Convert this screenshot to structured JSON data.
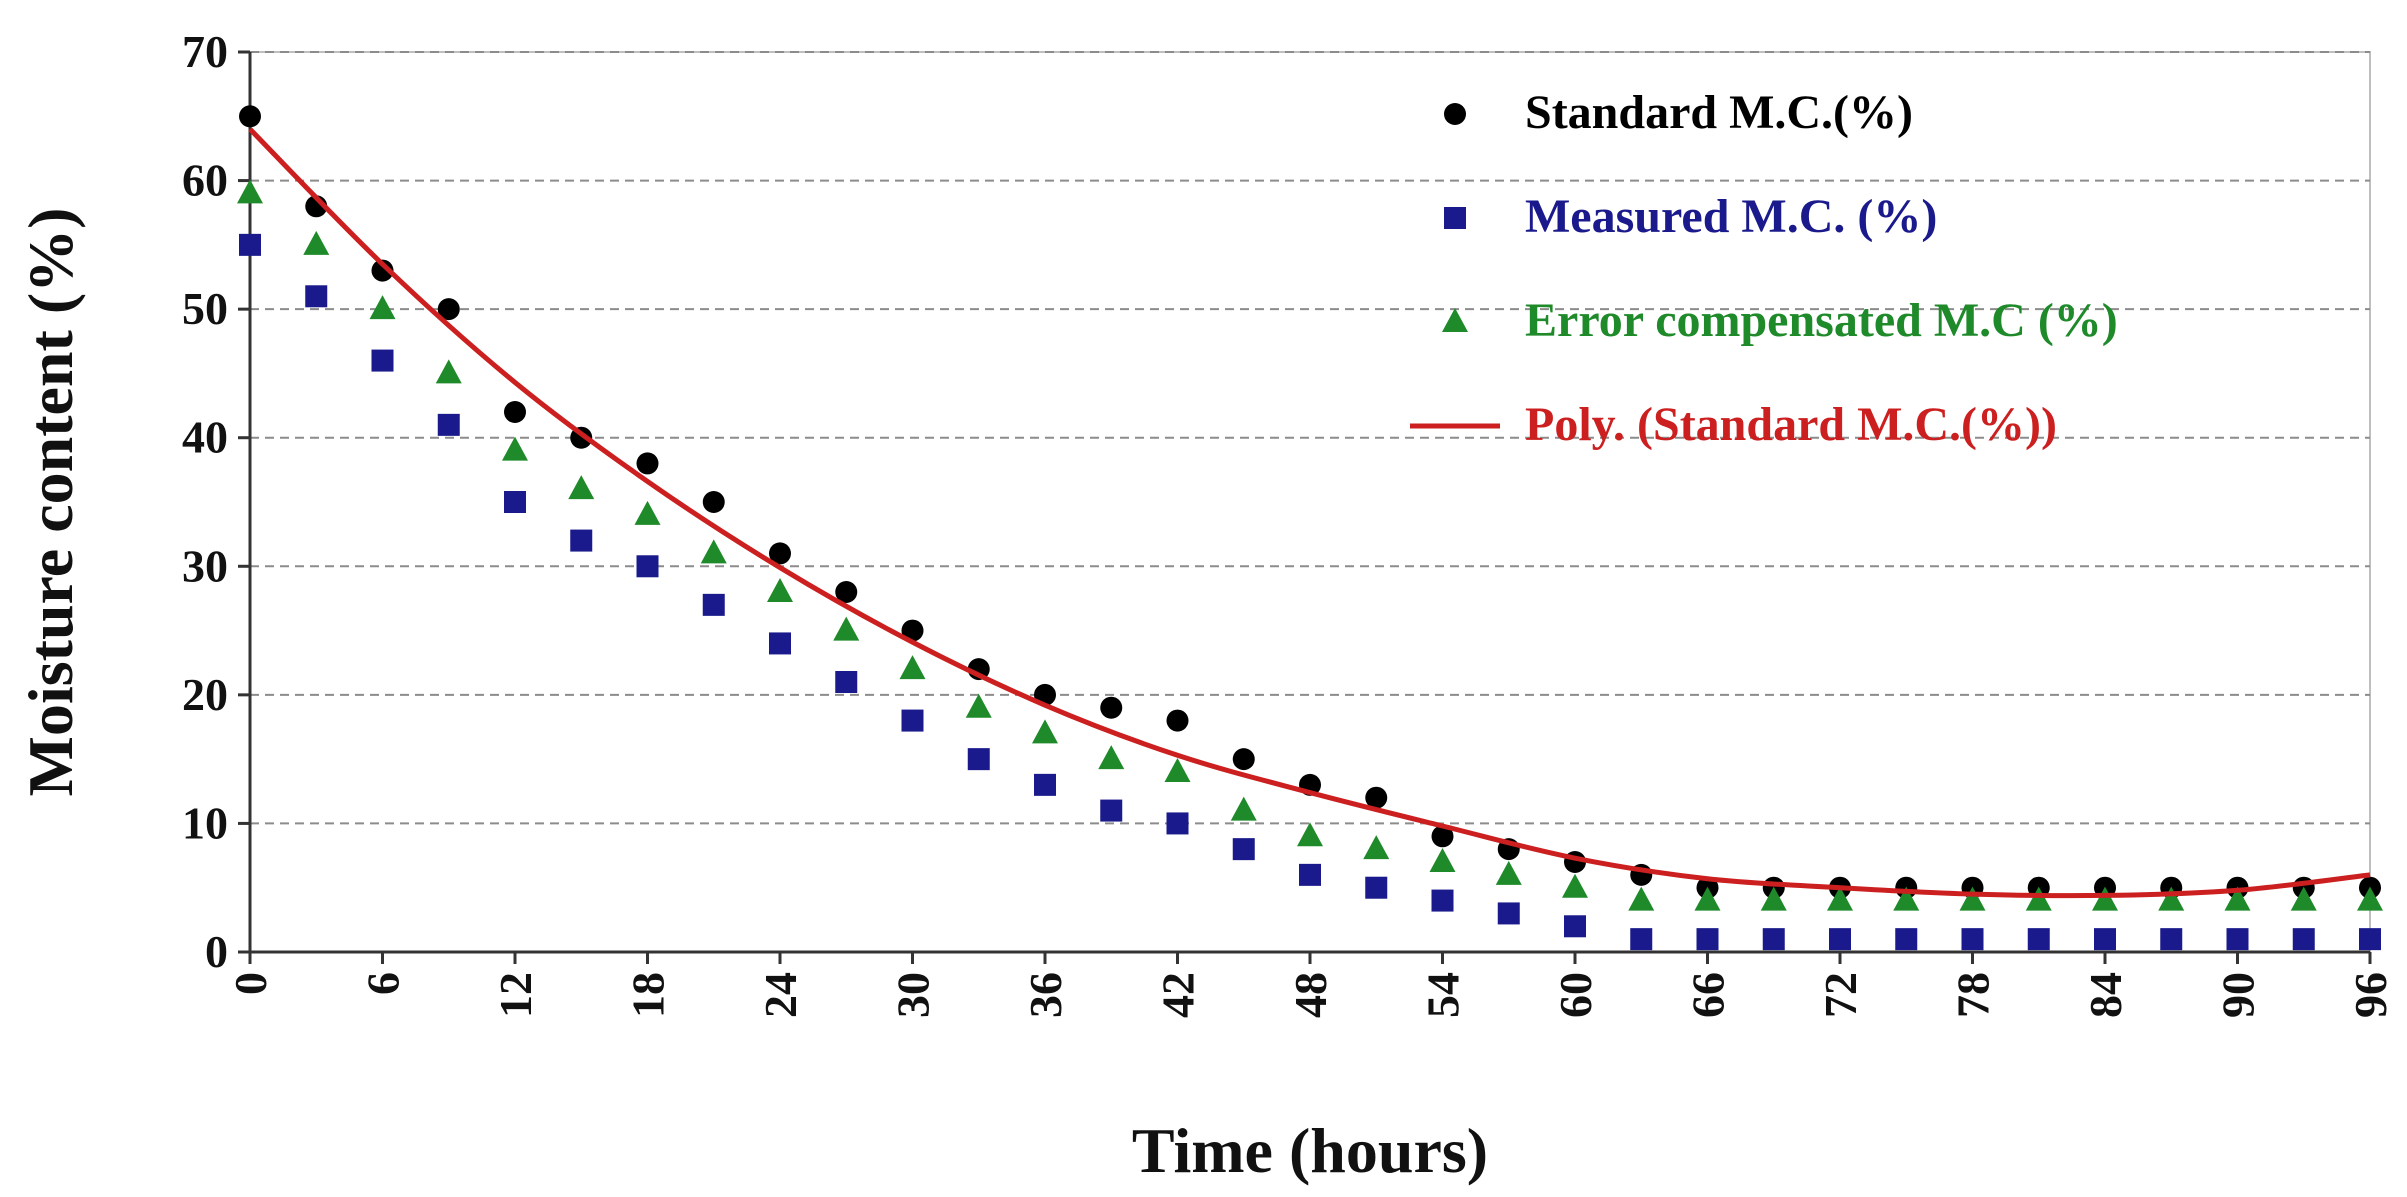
{
  "chart_data": {
    "type": "scatter",
    "title": "",
    "xlabel": "Time (hours)",
    "ylabel": "Moisture content (%)",
    "xlim": [
      0,
      96
    ],
    "ylim": [
      0,
      70
    ],
    "x_ticks": [
      0,
      6,
      12,
      18,
      24,
      30,
      36,
      42,
      48,
      54,
      60,
      66,
      72,
      78,
      84,
      90,
      96
    ],
    "y_ticks": [
      0,
      10,
      20,
      30,
      40,
      50,
      60,
      70
    ],
    "grid": "horizontal dashed",
    "legend_position": "top-right",
    "x": [
      0,
      3,
      6,
      9,
      12,
      15,
      18,
      21,
      24,
      27,
      30,
      33,
      36,
      39,
      42,
      45,
      48,
      51,
      54,
      57,
      60,
      63,
      66,
      69,
      72,
      75,
      78,
      81,
      84,
      87,
      90,
      93,
      96
    ],
    "series": [
      {
        "name": "Standard M.C.(%)",
        "marker": "circle",
        "color": "#000000",
        "values": [
          65,
          58,
          53,
          50,
          42,
          40,
          38,
          35,
          31,
          28,
          25,
          22,
          20,
          19,
          18,
          15,
          13,
          12,
          9,
          8,
          7,
          6,
          5,
          5,
          5,
          5,
          5,
          5,
          5,
          5,
          5,
          5,
          5
        ]
      },
      {
        "name": "Measured M.C. (%)",
        "marker": "square",
        "color": "#1a1a8c",
        "values": [
          55,
          51,
          46,
          41,
          35,
          32,
          30,
          27,
          24,
          21,
          18,
          15,
          13,
          11,
          10,
          8,
          6,
          5,
          4,
          3,
          2,
          1,
          1,
          1,
          1,
          1,
          1,
          1,
          1,
          1,
          1,
          1,
          1
        ]
      },
      {
        "name": "Error compensated M.C (%)",
        "marker": "triangle",
        "color": "#1f8a2a",
        "values": [
          59,
          55,
          50,
          45,
          39,
          36,
          34,
          31,
          28,
          25,
          22,
          19,
          17,
          15,
          14,
          11,
          9,
          8,
          7,
          6,
          5,
          4,
          4,
          4,
          4,
          4,
          4,
          4,
          4,
          4,
          4,
          4,
          4
        ]
      },
      {
        "name": "Poly. (Standard M.C.(%))",
        "marker": "line",
        "color": "#cc1f1f",
        "x": [
          0,
          6,
          12,
          18,
          24,
          30,
          36,
          42,
          48,
          54,
          60,
          66,
          72,
          78,
          84,
          90,
          96
        ],
        "values": [
          64,
          53.5,
          44.3,
          36.6,
          29.9,
          24.1,
          19.2,
          15.3,
          12.4,
          9.8,
          7.3,
          5.7,
          5.0,
          4.5,
          4.4,
          4.8,
          6.0
        ]
      }
    ]
  }
}
